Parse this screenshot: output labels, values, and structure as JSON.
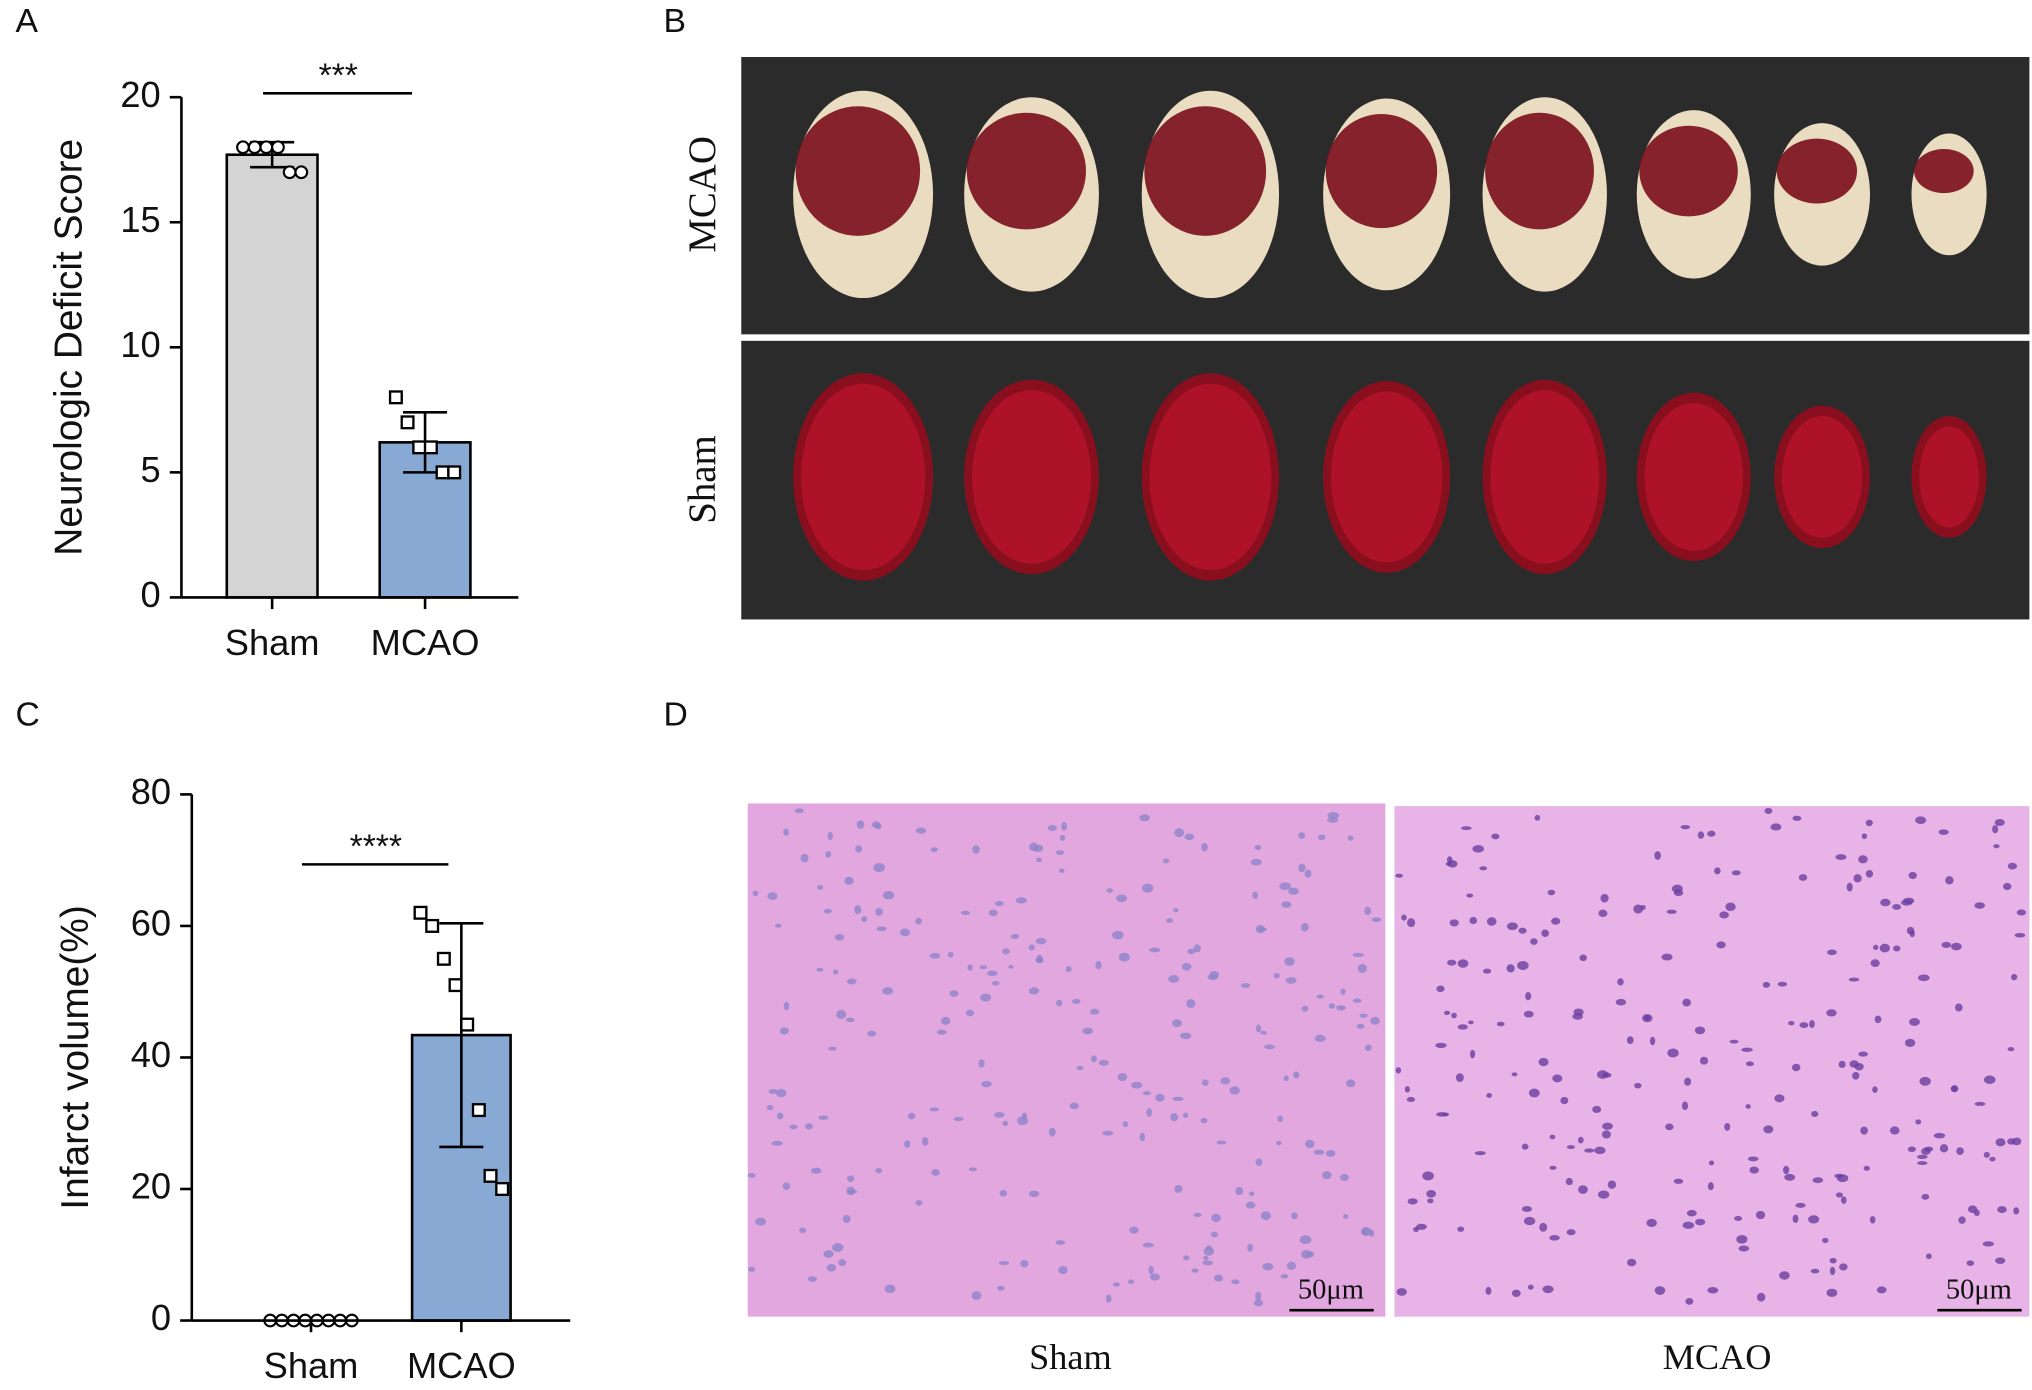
{
  "chart_data": [
    {
      "type": "bar",
      "panel": "A",
      "ylabel": "Neurologic Deficit Score",
      "categories": [
        "Sham",
        "MCAO"
      ],
      "values": [
        17.7,
        6.2
      ],
      "errors": [
        0.5,
        1.2
      ],
      "points": [
        [
          18,
          18,
          18,
          18,
          17,
          17
        ],
        [
          8,
          7,
          6,
          6,
          5,
          5
        ]
      ],
      "colors": [
        "#d4d4d4",
        "#88a9d4"
      ],
      "markers": [
        "circle",
        "square"
      ],
      "ylim": [
        0,
        20
      ],
      "yticks": [
        0,
        5,
        10,
        15,
        20
      ],
      "significance": "***"
    },
    {
      "type": "bar",
      "panel": "C",
      "ylabel": "Infarct volume(%)",
      "categories": [
        "Sham",
        "MCAO"
      ],
      "values": [
        0,
        43.4
      ],
      "errors": [
        0,
        17
      ],
      "points": [
        [
          0,
          0,
          0,
          0,
          0,
          0,
          0,
          0
        ],
        [
          62,
          60,
          55,
          51,
          45,
          32,
          22,
          20
        ]
      ],
      "colors": [
        "#d4d4d4",
        "#88a9d4"
      ],
      "markers": [
        "circle",
        "square"
      ],
      "ylim": [
        0,
        80
      ],
      "yticks": [
        0,
        20,
        40,
        60,
        80
      ],
      "significance": "****"
    }
  ],
  "panel_b": {
    "label": "B",
    "rows": [
      "MCAO",
      "Sham"
    ]
  },
  "panel_d": {
    "label": "D",
    "images": [
      "Sham",
      "MCAO"
    ],
    "scale_bar": "50μm"
  }
}
